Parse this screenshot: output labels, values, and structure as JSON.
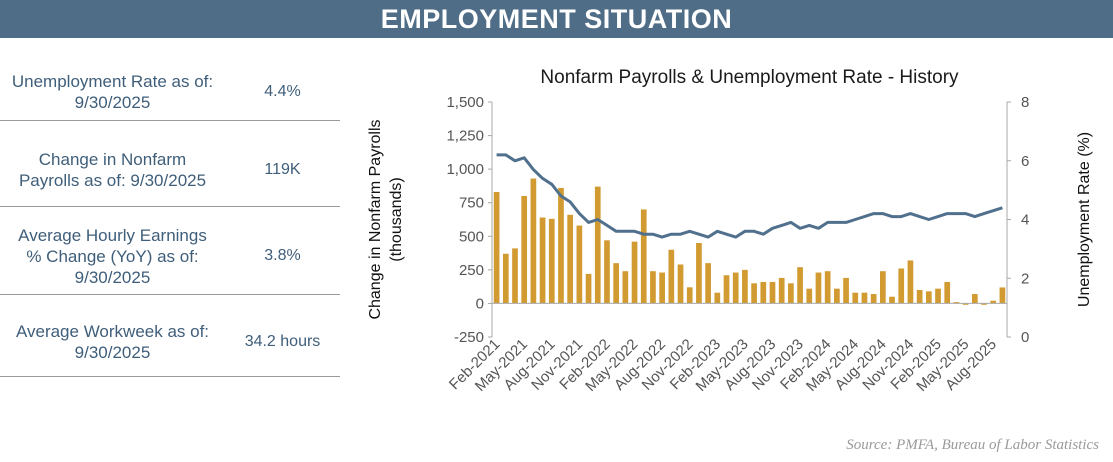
{
  "banner": {
    "title": "EMPLOYMENT SITUATION"
  },
  "stats": [
    {
      "label_1": "Unemployment Rate as of:",
      "label_2": "9/30/2025",
      "label_3": "",
      "value": "4.4%"
    },
    {
      "label_1": "Change in Nonfarm",
      "label_2": "Payrolls as of: 9/30/2025",
      "label_3": "",
      "value": "119K"
    },
    {
      "label_1": "Average Hourly Earnings",
      "label_2": "% Change (YoY) as of:",
      "label_3": "9/30/2025",
      "value": "3.8%"
    },
    {
      "label_1": "Average Workweek as of:",
      "label_2": "9/30/2025",
      "label_3": "",
      "value": "34.2 hours"
    }
  ],
  "source": "Source:  PMFA,  Bureau of Labor Statistics",
  "colors": {
    "banner": "#4f6d87",
    "bars": "#d29b32",
    "line": "#51708d",
    "text": "#3f5e7a"
  },
  "chart_data": {
    "type": "bar",
    "title": "Nonfarm Payrolls & Unemployment Rate - History",
    "ylabel_left": [
      "Change in  Nonfarm  Payrolls",
      "(thousands)"
    ],
    "ylabel_right": "Unemployment  Rate (%)",
    "y_left_lim": [
      -250,
      1500
    ],
    "y_left_ticks": [
      "-250",
      "0",
      "250",
      "500",
      "750",
      "1,000",
      "1,250",
      "1,500"
    ],
    "y_right_lim": [
      0,
      8
    ],
    "y_right_ticks": [
      "0",
      "2",
      "4",
      "6",
      "8"
    ],
    "x_tick_labels": [
      "Feb-2021",
      "May-2021",
      "Aug-2021",
      "Nov-2021",
      "Feb-2022",
      "May-2022",
      "Aug-2022",
      "Nov-2022",
      "Feb-2023",
      "May-2023",
      "Aug-2023",
      "Nov-2023",
      "Feb-2024",
      "May-2024",
      "Aug-2024",
      "Nov-2024",
      "Feb-2025",
      "May-2025",
      "Aug-2025"
    ],
    "x_tick_every": 3,
    "months": [
      "Feb-2021",
      "Mar-2021",
      "Apr-2021",
      "May-2021",
      "Jun-2021",
      "Jul-2021",
      "Aug-2021",
      "Sep-2021",
      "Oct-2021",
      "Nov-2021",
      "Dec-2021",
      "Jan-2022",
      "Feb-2022",
      "Mar-2022",
      "Apr-2022",
      "May-2022",
      "Jun-2022",
      "Jul-2022",
      "Aug-2022",
      "Sep-2022",
      "Oct-2022",
      "Nov-2022",
      "Dec-2022",
      "Jan-2023",
      "Feb-2023",
      "Mar-2023",
      "Apr-2023",
      "May-2023",
      "Jun-2023",
      "Jul-2023",
      "Aug-2023",
      "Sep-2023",
      "Oct-2023",
      "Nov-2023",
      "Dec-2023",
      "Jan-2024",
      "Feb-2024",
      "Mar-2024",
      "Apr-2024",
      "May-2024",
      "Jun-2024",
      "Jul-2024",
      "Aug-2024",
      "Sep-2024",
      "Oct-2024",
      "Nov-2024",
      "Dec-2024",
      "Jan-2025",
      "Feb-2025",
      "Mar-2025",
      "Apr-2025",
      "May-2025",
      "Jun-2025",
      "Jul-2025",
      "Aug-2025",
      "Sep-2025"
    ],
    "series": [
      {
        "kind": "bar",
        "axis": "left",
        "values": [
          830,
          370,
          410,
          800,
          930,
          640,
          630,
          860,
          660,
          580,
          220,
          870,
          470,
          300,
          240,
          460,
          700,
          240,
          230,
          400,
          290,
          120,
          450,
          300,
          80,
          210,
          230,
          250,
          150,
          160,
          160,
          190,
          150,
          270,
          110,
          230,
          240,
          110,
          190,
          80,
          80,
          70,
          240,
          50,
          260,
          320,
          100,
          90,
          110,
          160,
          10,
          -10,
          70,
          -10,
          20,
          119
        ]
      },
      {
        "kind": "line",
        "axis": "right",
        "values": [
          6.2,
          6.2,
          6.0,
          6.1,
          5.7,
          5.4,
          5.2,
          4.8,
          4.6,
          4.2,
          3.9,
          4.0,
          3.8,
          3.6,
          3.6,
          3.6,
          3.5,
          3.5,
          3.4,
          3.5,
          3.5,
          3.6,
          3.5,
          3.4,
          3.6,
          3.5,
          3.4,
          3.6,
          3.6,
          3.5,
          3.7,
          3.8,
          3.9,
          3.7,
          3.8,
          3.7,
          3.9,
          3.9,
          3.9,
          4.0,
          4.1,
          4.2,
          4.2,
          4.1,
          4.1,
          4.2,
          4.1,
          4.0,
          4.1,
          4.2,
          4.2,
          4.2,
          4.1,
          4.2,
          4.3,
          4.4
        ]
      }
    ]
  }
}
